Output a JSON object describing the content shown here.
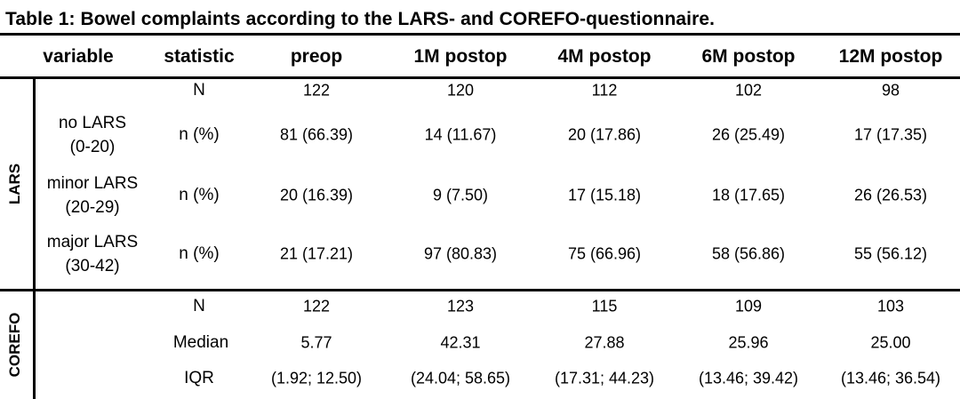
{
  "title": "Table 1: Bowel complaints according to the LARS- and COREFO-questionnaire.",
  "columns": [
    "variable",
    "statistic",
    "preop",
    "1M postop",
    "4M postop",
    "6M postop",
    "12M postop"
  ],
  "groups": [
    "LARS",
    "COREFO"
  ],
  "lars": {
    "n_row": {
      "statistic": "N",
      "values": [
        "122",
        "120",
        "112",
        "102",
        "98"
      ]
    },
    "rows": [
      {
        "label1": "no LARS",
        "label2": "(0-20)",
        "statistic": "n (%)",
        "values": [
          "81 (66.39)",
          "14 (11.67)",
          "20 (17.86)",
          "26 (25.49)",
          "17 (17.35)"
        ]
      },
      {
        "label1": "minor LARS",
        "label2": "(20-29)",
        "statistic": "n (%)",
        "values": [
          "20 (16.39)",
          "9 (7.50)",
          "17 (15.18)",
          "18 (17.65)",
          "26 (26.53)"
        ]
      },
      {
        "label1": "major LARS",
        "label2": "(30-42)",
        "statistic": "n (%)",
        "values": [
          "21 (17.21)",
          "97 (80.83)",
          "75 (66.96)",
          "58 (56.86)",
          "55 (56.12)"
        ]
      }
    ]
  },
  "corefo": {
    "rows": [
      {
        "statistic": "N",
        "values": [
          "122",
          "123",
          "115",
          "109",
          "103"
        ]
      },
      {
        "statistic": "Median",
        "values": [
          "5.77",
          "42.31",
          "27.88",
          "25.96",
          "25.00"
        ]
      },
      {
        "statistic": "IQR",
        "values": [
          "(1.92; 12.50)",
          "(24.04; 58.65)",
          "(17.31; 44.23)",
          "(13.46; 39.42)",
          "(13.46; 36.54)"
        ]
      }
    ]
  }
}
